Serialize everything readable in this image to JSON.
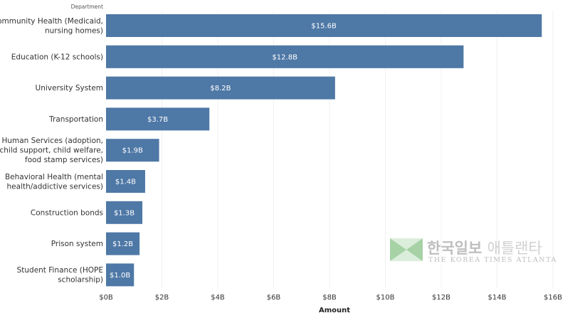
{
  "chart_data": {
    "type": "bar",
    "orientation": "horizontal",
    "row_header": "Department",
    "xlabel": "Amount",
    "xlim": [
      0,
      16
    ],
    "x_ticks": [
      "$0B",
      "$2B",
      "$4B",
      "$6B",
      "$8B",
      "$10B",
      "$12B",
      "$14B",
      "$16B"
    ],
    "categories": [
      [
        "Community Health (Medicaid,",
        "nursing homes)"
      ],
      [
        "Education (K-12 schools)"
      ],
      [
        "University System"
      ],
      [
        "Transportation"
      ],
      [
        "Human Services (adoption,",
        "child support, child welfare,",
        "food stamp services)"
      ],
      [
        "Behavioral Health (mental",
        "health/addictive services)"
      ],
      [
        "Construction bonds"
      ],
      [
        "Prison system"
      ],
      [
        "Student Finance (HOPE",
        "scholarship)"
      ]
    ],
    "values": [
      15.6,
      12.8,
      8.2,
      3.7,
      1.9,
      1.4,
      1.3,
      1.2,
      1.0
    ],
    "data_labels": [
      "$15.6B",
      "$12.8B",
      "$8.2B",
      "$3.7B",
      "$1.9B",
      "$1.4B",
      "$1.3B",
      "$1.2B",
      "$1.0B"
    ],
    "grid": "vertical",
    "bar_color": "#4e78a6"
  },
  "watermark": {
    "korean": "한국일보",
    "korean2": "애틀랜타",
    "english": "THE KOREA TIMES ATLANTA"
  }
}
